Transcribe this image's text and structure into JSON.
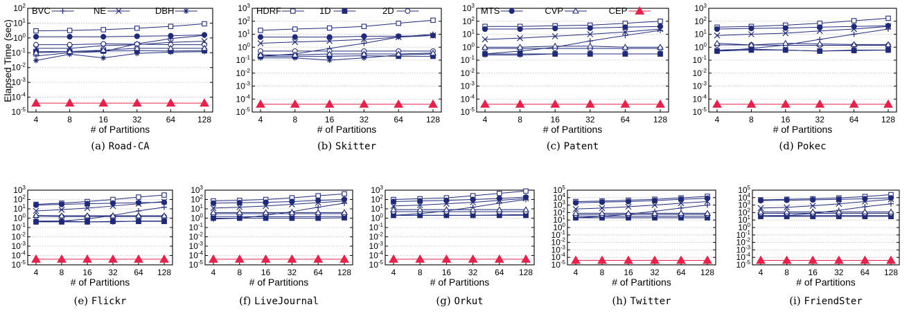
{
  "figure": {
    "ylabel": "Elapsed Time (sec)",
    "xlabel": "# of Partitions"
  },
  "legend": [
    {
      "name": "BVC",
      "marker": "plus"
    },
    {
      "name": "NE",
      "marker": "x"
    },
    {
      "name": "DBH",
      "marker": "star"
    },
    {
      "name": "HDRF",
      "marker": "square-open"
    },
    {
      "name": "1D",
      "marker": "square-filled"
    },
    {
      "name": "2D",
      "marker": "circle-open"
    },
    {
      "name": "MTS",
      "marker": "circle-filled"
    },
    {
      "name": "CVP",
      "marker": "triangle-open"
    },
    {
      "name": "CEP",
      "marker": "triangle-filled"
    }
  ],
  "colors": {
    "series": "#1f2a7a",
    "cep": "#e8214a",
    "grid": "#bdbdbd"
  },
  "chart_data": [
    {
      "type": "line",
      "caption_label": "(a)",
      "caption_name": "Road-CA",
      "ymin_exp": -5,
      "ymax_exp": 2,
      "categories": [
        "4",
        "8",
        "16",
        "32",
        "64",
        "128"
      ],
      "series": [
        {
          "name": "BVC",
          "values": [
            0.06,
            0.1,
            0.12,
            0.4,
            0.9,
            1.5
          ]
        },
        {
          "name": "NE",
          "values": [
            0.2,
            0.2,
            0.3,
            0.35,
            0.5,
            0.6
          ]
        },
        {
          "name": "DBH",
          "values": [
            0.03,
            0.08,
            0.045,
            0.09,
            0.11,
            0.12
          ]
        },
        {
          "name": "HDRF",
          "values": [
            3,
            3.2,
            3.6,
            4.5,
            6,
            9
          ]
        },
        {
          "name": "1D",
          "values": [
            0.12,
            0.12,
            0.13,
            0.14,
            0.13,
            0.14
          ]
        },
        {
          "name": "2D",
          "values": [
            0.35,
            0.35,
            0.4,
            0.38,
            0.35,
            0.35
          ]
        },
        {
          "name": "MTS",
          "values": [
            1.2,
            1.2,
            1.2,
            1.3,
            1.4,
            1.6
          ]
        },
        {
          "name": "CVP",
          "values": [
            0.1,
            0.12,
            0.15,
            0.2,
            0.2,
            0.2
          ]
        },
        {
          "name": "CEP",
          "values": [
            4e-05,
            4e-05,
            4e-05,
            4e-05,
            4e-05,
            4e-05
          ]
        }
      ]
    },
    {
      "type": "line",
      "caption_label": "(b)",
      "caption_name": "Skitter",
      "ymin_exp": -5,
      "ymax_exp": 3,
      "categories": [
        "4",
        "8",
        "16",
        "32",
        "64",
        "128"
      ],
      "series": [
        {
          "name": "BVC",
          "values": [
            0.2,
            0.3,
            0.8,
            2,
            6,
            10
          ]
        },
        {
          "name": "NE",
          "values": [
            2,
            2.5,
            3,
            4,
            6,
            8
          ]
        },
        {
          "name": "DBH",
          "values": [
            0.15,
            0.15,
            0.1,
            0.15,
            0.25,
            0.3
          ]
        },
        {
          "name": "HDRF",
          "values": [
            20,
            25,
            30,
            40,
            70,
            120
          ]
        },
        {
          "name": "1D",
          "values": [
            0.2,
            0.2,
            0.2,
            0.22,
            0.2,
            0.2
          ]
        },
        {
          "name": "2D",
          "values": [
            0.5,
            0.5,
            0.5,
            0.5,
            0.5,
            0.5
          ]
        },
        {
          "name": "MTS",
          "values": [
            6,
            6,
            6,
            7,
            7,
            8
          ]
        },
        {
          "name": "CVP",
          "values": [
            0.25,
            0.25,
            0.3,
            0.3,
            0.3,
            0.35
          ]
        },
        {
          "name": "CEP",
          "values": [
            4e-05,
            4e-05,
            4e-05,
            4e-05,
            4e-05,
            4e-05
          ]
        }
      ]
    },
    {
      "type": "line",
      "caption_label": "(c)",
      "caption_name": "Patent",
      "ymin_exp": -5,
      "ymax_exp": 3,
      "categories": [
        "4",
        "8",
        "16",
        "32",
        "64",
        "128"
      ],
      "series": [
        {
          "name": "BVC",
          "values": [
            0.3,
            0.5,
            1,
            3,
            8,
            20
          ]
        },
        {
          "name": "NE",
          "values": [
            4,
            5,
            7,
            10,
            15,
            25
          ]
        },
        {
          "name": "DBH",
          "values": [
            0.25,
            0.25,
            0.3,
            0.3,
            0.3,
            0.3
          ]
        },
        {
          "name": "HDRF",
          "values": [
            40,
            40,
            45,
            50,
            70,
            100
          ]
        },
        {
          "name": "1D",
          "values": [
            0.3,
            0.3,
            0.3,
            0.3,
            0.3,
            0.3
          ]
        },
        {
          "name": "2D",
          "values": [
            0.8,
            0.8,
            0.8,
            0.8,
            0.8,
            0.8
          ]
        },
        {
          "name": "MTS",
          "values": [
            25,
            25,
            28,
            30,
            35,
            40
          ]
        },
        {
          "name": "CVP",
          "values": [
            1,
            1,
            1.2,
            1.2,
            1,
            1
          ]
        },
        {
          "name": "CEP",
          "values": [
            4e-05,
            4e-05,
            4e-05,
            4e-05,
            4e-05,
            4e-05
          ]
        }
      ]
    },
    {
      "type": "line",
      "caption_label": "(d)",
      "caption_name": "Pokec",
      "ymin_exp": -5,
      "ymax_exp": 3,
      "categories": [
        "4",
        "8",
        "16",
        "32",
        "64",
        "128"
      ],
      "series": [
        {
          "name": "BVC",
          "values": [
            0.5,
            0.8,
            1.5,
            4,
            10,
            25
          ]
        },
        {
          "name": "NE",
          "values": [
            8,
            10,
            12,
            18,
            25,
            40
          ]
        },
        {
          "name": "DBH",
          "values": [
            0.6,
            0.7,
            0.6,
            0.5,
            0.6,
            0.6
          ]
        },
        {
          "name": "HDRF",
          "values": [
            35,
            40,
            50,
            70,
            110,
            170
          ]
        },
        {
          "name": "1D",
          "values": [
            0.5,
            0.6,
            0.6,
            0.5,
            0.55,
            0.6
          ]
        },
        {
          "name": "2D",
          "values": [
            1.5,
            1.5,
            1.4,
            1.4,
            1.4,
            1.4
          ]
        },
        {
          "name": "MTS",
          "values": [
            25,
            28,
            30,
            35,
            40,
            45
          ]
        },
        {
          "name": "CVP",
          "values": [
            2,
            1.5,
            2,
            1.8,
            1.6,
            1.6
          ]
        },
        {
          "name": "CEP",
          "values": [
            4e-05,
            4e-05,
            4e-05,
            4e-05,
            4e-05,
            4e-05
          ]
        }
      ]
    },
    {
      "type": "line",
      "caption_label": "(e)",
      "caption_name": "Flickr",
      "ymin_exp": -5,
      "ymax_exp": 3,
      "categories": [
        "4",
        "8",
        "16",
        "32",
        "64",
        "128"
      ],
      "series": [
        {
          "name": "BVC",
          "values": [
            0.5,
            0.5,
            0.8,
            2,
            6,
            15
          ]
        },
        {
          "name": "NE",
          "values": [
            6,
            8,
            12,
            20,
            35,
            60
          ]
        },
        {
          "name": "DBH",
          "values": [
            0.4,
            0.5,
            0.4,
            0.4,
            0.5,
            0.5
          ]
        },
        {
          "name": "HDRF",
          "values": [
            30,
            40,
            60,
            100,
            180,
            300
          ]
        },
        {
          "name": "1D",
          "values": [
            0.4,
            0.4,
            0.4,
            0.45,
            0.45,
            0.45
          ]
        },
        {
          "name": "2D",
          "values": [
            1.5,
            1.5,
            1.5,
            1.5,
            1.5,
            1.5
          ]
        },
        {
          "name": "MTS",
          "values": [
            25,
            30,
            35,
            40,
            45,
            50
          ]
        },
        {
          "name": "CVP",
          "values": [
            2,
            1.8,
            1.8,
            1.8,
            1.8,
            1.8
          ]
        },
        {
          "name": "CEP",
          "values": [
            4e-05,
            4e-05,
            4e-05,
            4e-05,
            4e-05,
            4e-05
          ]
        }
      ]
    },
    {
      "type": "line",
      "caption_label": "(f)",
      "caption_name": "LiveJournal",
      "ymin_exp": -5,
      "ymax_exp": 3,
      "categories": [
        "4",
        "8",
        "16",
        "32",
        "64",
        "128"
      ],
      "series": [
        {
          "name": "BVC",
          "values": [
            0.8,
            1,
            2,
            5,
            15,
            40
          ]
        },
        {
          "name": "NE",
          "values": [
            12,
            15,
            20,
            30,
            45,
            70
          ]
        },
        {
          "name": "DBH",
          "values": [
            1.5,
            1.5,
            1.4,
            1.4,
            1.5,
            1.5
          ]
        },
        {
          "name": "HDRF",
          "values": [
            70,
            80,
            100,
            150,
            250,
            400
          ]
        },
        {
          "name": "1D",
          "values": [
            1,
            1,
            1,
            1,
            1,
            1.1
          ]
        },
        {
          "name": "2D",
          "values": [
            3,
            3,
            3,
            3,
            3,
            3
          ]
        },
        {
          "name": "MTS",
          "values": [
            40,
            45,
            50,
            60,
            80,
            100
          ]
        },
        {
          "name": "CVP",
          "values": [
            4,
            4,
            4,
            4,
            4,
            4
          ]
        },
        {
          "name": "CEP",
          "values": [
            4e-05,
            4e-05,
            4e-05,
            4e-05,
            4e-05,
            4e-05
          ]
        }
      ]
    },
    {
      "type": "line",
      "caption_label": "(g)",
      "caption_name": "Orkut",
      "ymin_exp": -5,
      "ymax_exp": 3,
      "categories": [
        "4",
        "8",
        "16",
        "32",
        "64",
        "128"
      ],
      "series": [
        {
          "name": "BVC",
          "values": [
            2,
            3,
            6,
            15,
            40,
            100
          ]
        },
        {
          "name": "NE",
          "values": [
            20,
            25,
            35,
            50,
            80,
            130
          ]
        },
        {
          "name": "DBH",
          "values": [
            2,
            2,
            2,
            2,
            2.2,
            2.5
          ]
        },
        {
          "name": "HDRF",
          "values": [
            100,
            120,
            150,
            250,
            450,
            800
          ]
        },
        {
          "name": "1D",
          "values": [
            2,
            2,
            2,
            2,
            2,
            2
          ]
        },
        {
          "name": "2D",
          "values": [
            5,
            5,
            5,
            5,
            5,
            5
          ]
        },
        {
          "name": "MTS",
          "values": [
            60,
            70,
            80,
            100,
            130,
            180
          ]
        },
        {
          "name": "CVP",
          "values": [
            8,
            8,
            8,
            8,
            8,
            8
          ]
        },
        {
          "name": "CEP",
          "values": [
            4e-05,
            4e-05,
            4e-05,
            4e-05,
            4e-05,
            4e-05
          ]
        }
      ]
    },
    {
      "type": "line",
      "caption_label": "(h)",
      "caption_name": "Twitter",
      "ymin_exp": -5,
      "ymax_exp": 5,
      "categories": [
        "4",
        "8",
        "16",
        "32",
        "64",
        "128"
      ],
      "series": [
        {
          "name": "BVC",
          "values": [
            20,
            30,
            60,
            150,
            400,
            1000
          ]
        },
        {
          "name": "NE",
          "values": [
            300,
            400,
            600,
            1000,
            1800,
            3000
          ]
        },
        {
          "name": "DBH",
          "values": [
            30,
            30,
            30,
            30,
            30,
            30
          ]
        },
        {
          "name": "HDRF",
          "values": [
            3000,
            3500,
            4500,
            6000,
            9000,
            15000
          ]
        },
        {
          "name": "1D",
          "values": [
            20,
            20,
            20,
            20,
            20,
            20
          ]
        },
        {
          "name": "2D",
          "values": [
            50,
            50,
            55,
            55,
            55,
            55
          ]
        },
        {
          "name": "MTS",
          "values": [
            2000,
            2500,
            3000,
            4000,
            6000,
            8000
          ]
        },
        {
          "name": "CVP",
          "values": [
            80,
            80,
            80,
            80,
            80,
            80
          ]
        },
        {
          "name": "CEP",
          "values": [
            4e-05,
            4e-05,
            4e-05,
            4e-05,
            4e-05,
            4e-05
          ]
        }
      ]
    },
    {
      "type": "line",
      "caption_label": "(i)",
      "caption_name": "FriendSter",
      "ymin_exp": -5,
      "ymax_exp": 5,
      "categories": [
        "4",
        "8",
        "16",
        "32",
        "64",
        "128"
      ],
      "series": [
        {
          "name": "BVC",
          "values": [
            30,
            40,
            80,
            200,
            600,
            1500
          ]
        },
        {
          "name": "NE",
          "values": [
            400,
            500,
            800,
            1500,
            3000,
            6000
          ]
        },
        {
          "name": "DBH",
          "values": [
            40,
            40,
            40,
            40,
            40,
            40
          ]
        },
        {
          "name": "HDRF",
          "values": [
            5000,
            6000,
            7000,
            9000,
            14000,
            25000
          ]
        },
        {
          "name": "1D",
          "values": [
            30,
            30,
            30,
            30,
            30,
            30
          ]
        },
        {
          "name": "2D",
          "values": [
            80,
            80,
            80,
            80,
            80,
            80
          ]
        },
        {
          "name": "MTS",
          "values": [
            4000,
            4500,
            5000,
            6000,
            7000,
            9000
          ]
        },
        {
          "name": "CVP",
          "values": [
            120,
            120,
            120,
            120,
            120,
            120
          ]
        },
        {
          "name": "CEP",
          "values": [
            4e-05,
            4e-05,
            4e-05,
            4e-05,
            4e-05,
            4e-05
          ]
        }
      ]
    }
  ]
}
